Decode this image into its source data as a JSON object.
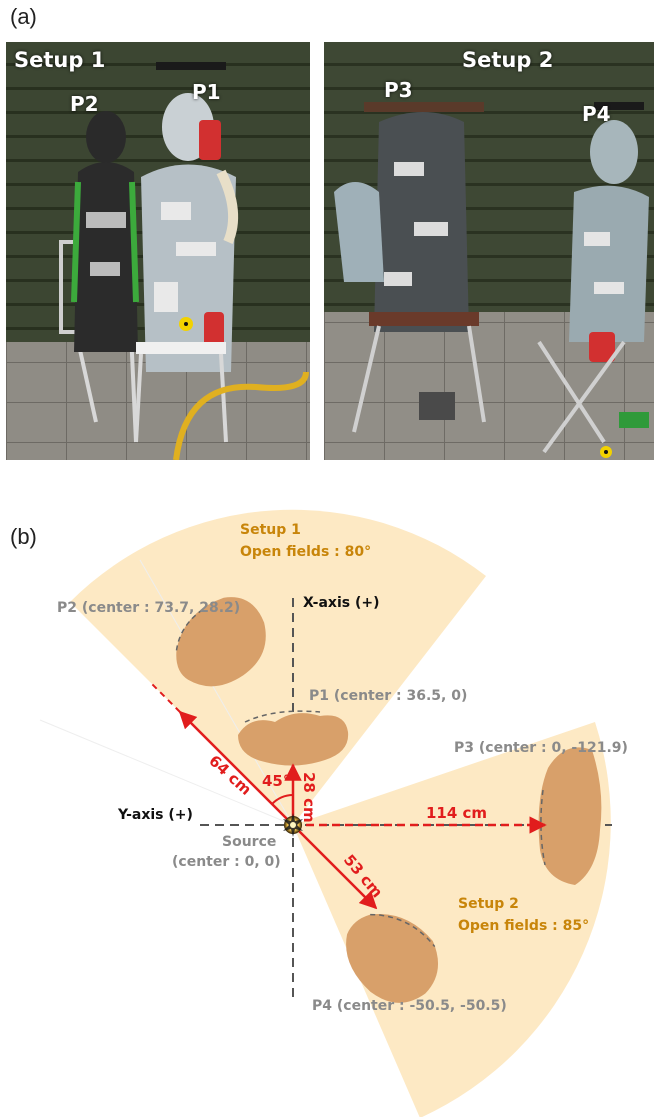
{
  "panel_a": {
    "label": "(a)",
    "setup1": {
      "title": "Setup 1",
      "p2": "P2",
      "p1": "P1"
    },
    "setup2": {
      "title": "Setup 2",
      "p3": "P3",
      "p4": "P4"
    }
  },
  "panel_b": {
    "label": "(b)",
    "setup1_title": "Setup 1",
    "setup1_fields": "Open fields : 80°",
    "setup2_title": "Setup 2",
    "setup2_fields": "Open fields : 85°",
    "x_axis": "X-axis (+)",
    "y_axis": "Y-axis (+)",
    "source": "Source",
    "source_center": "(center : 0, 0)",
    "p1": "P1 (center : 36.5, 0)",
    "p2": "P2 (center : 73.7, 28.2)",
    "p3": "P3 (center : 0, -121.9)",
    "p4": "P4 (center : -50.5, -50.5)",
    "dist_p1": "28 cm",
    "dist_p2": "64 cm",
    "dist_p3": "114 cm",
    "dist_p4": "53 cm",
    "angle": "45°",
    "colors": {
      "field": "#fde9c4",
      "arrow": "#e11d1d",
      "label_gold": "#c8850a",
      "label_gray": "#8a8a8a",
      "phantom": "#d8a06a"
    }
  }
}
